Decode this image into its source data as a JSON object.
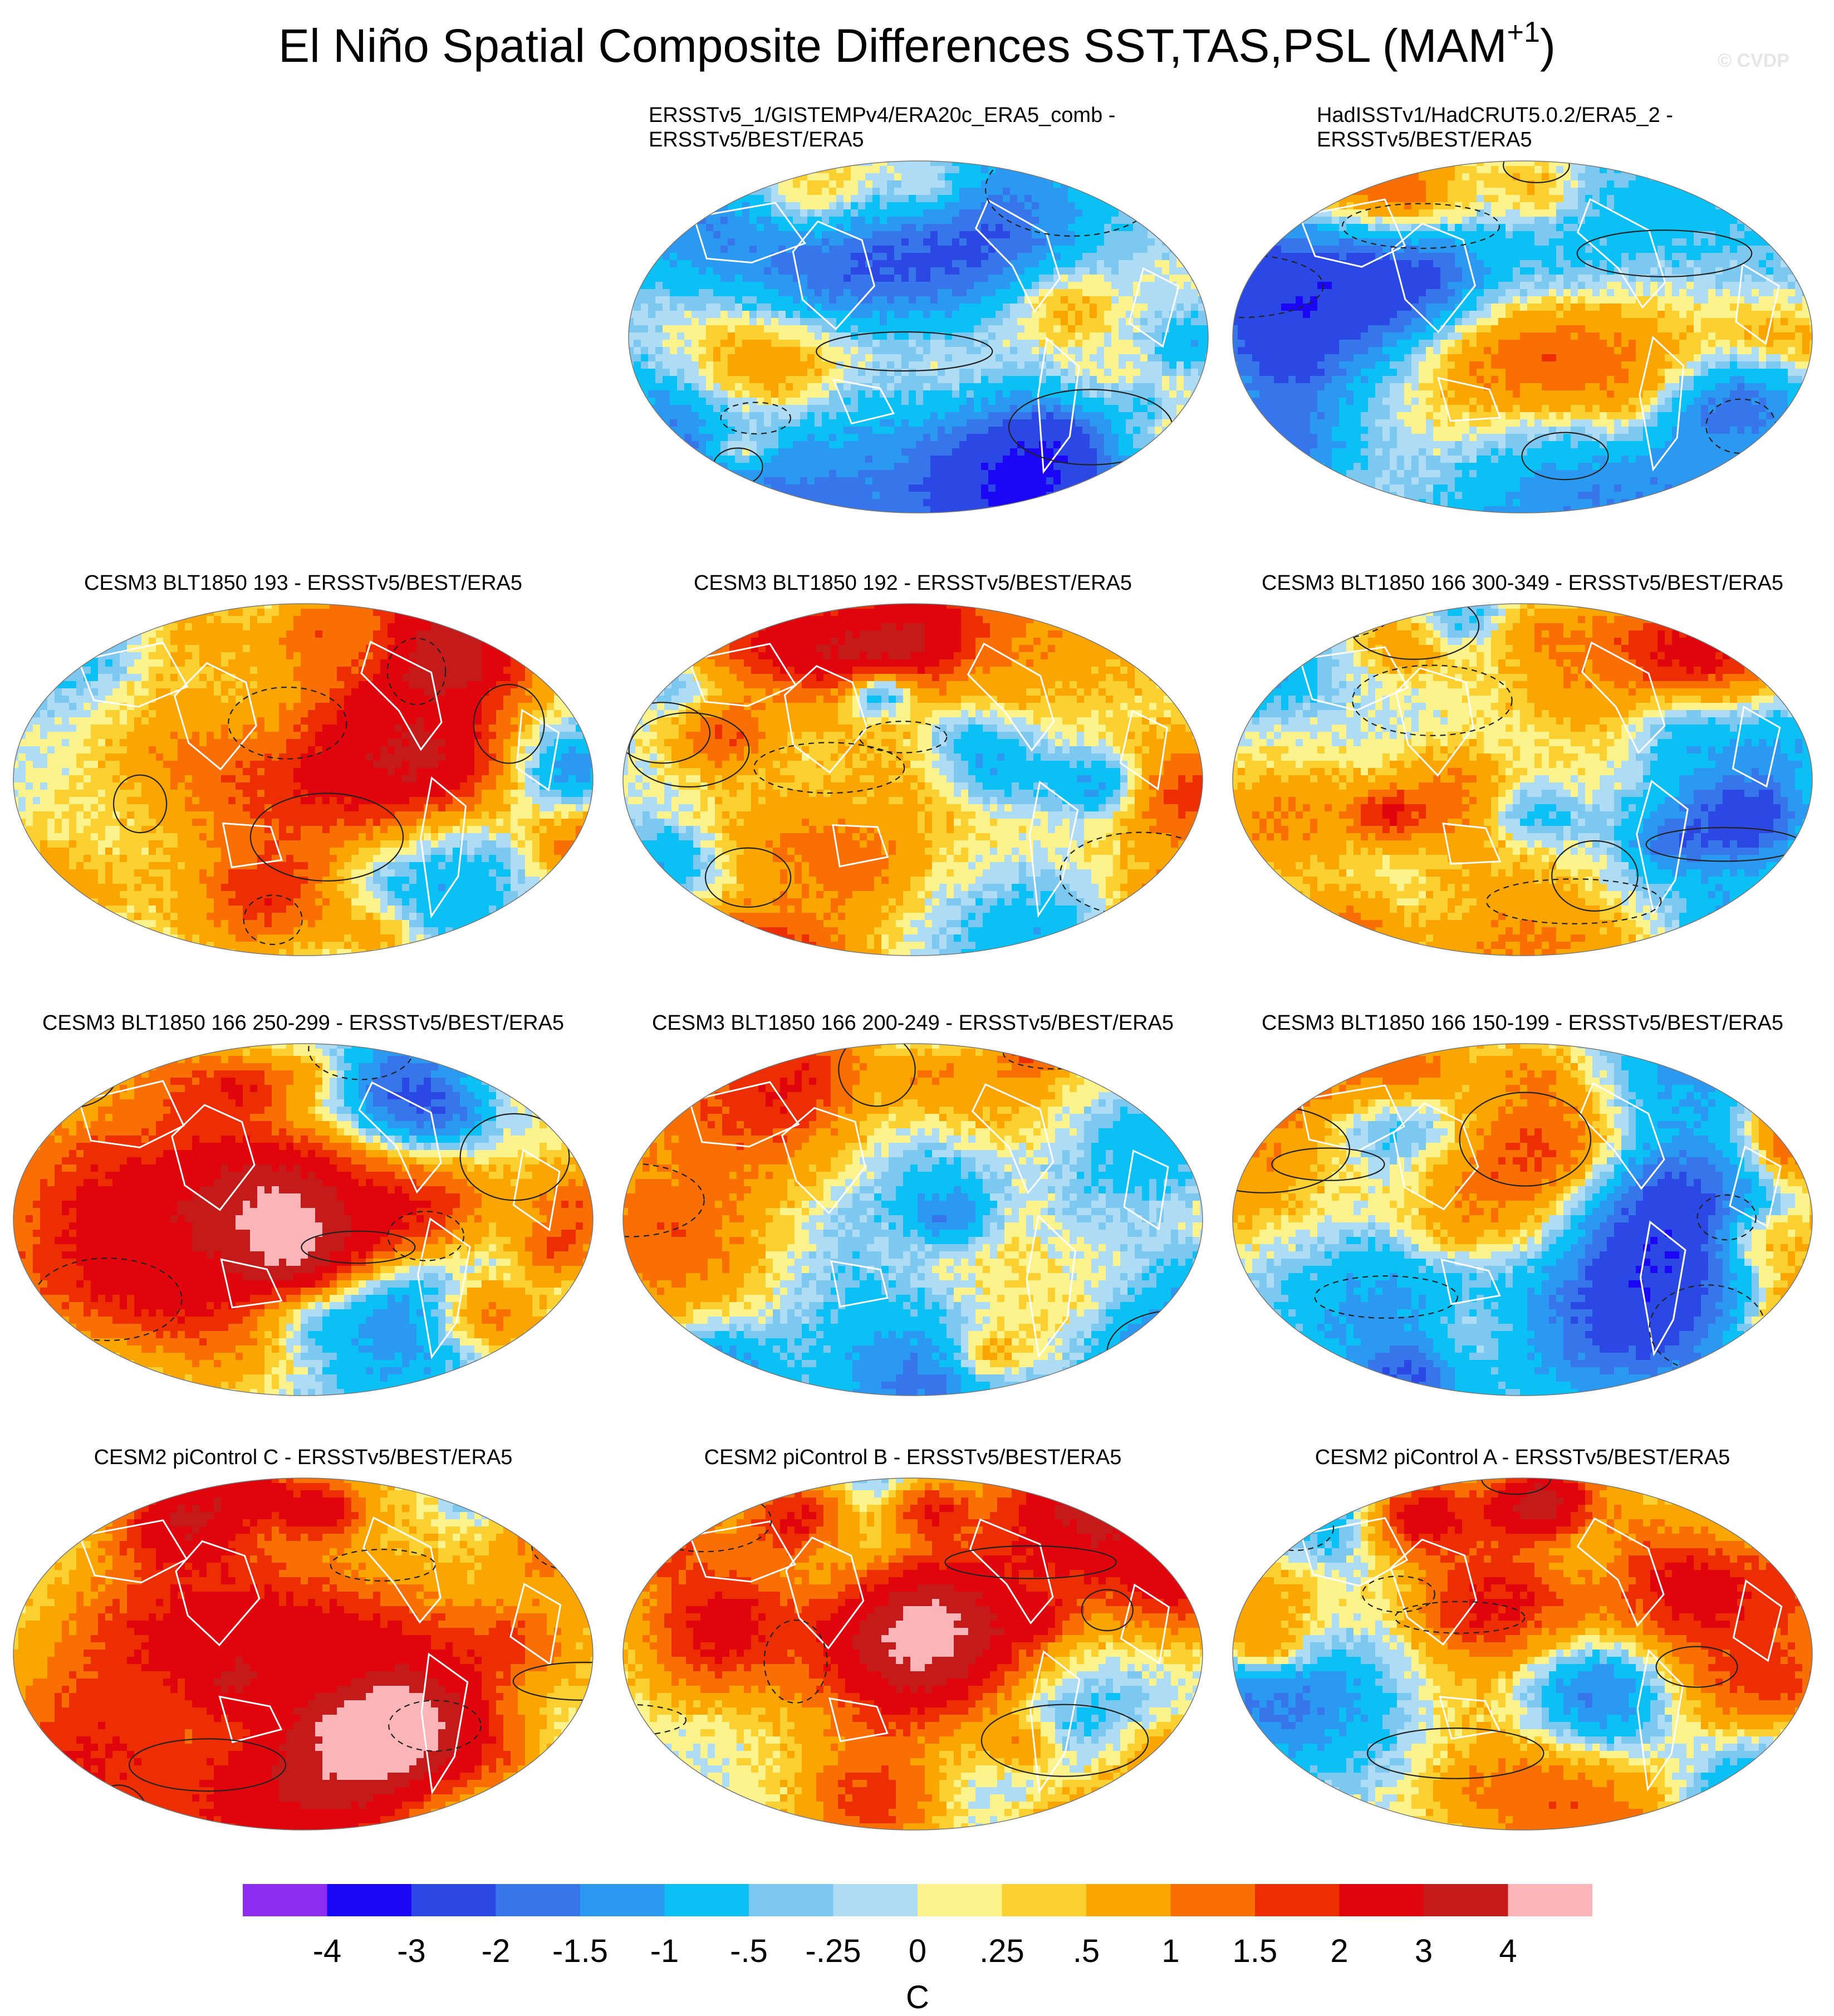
{
  "title": {
    "main": "El Niño Spatial Composite Differences SST,TAS,PSL (MAM",
    "sup": "+1",
    "close": ")"
  },
  "watermark": "© CVDP",
  "panels": [
    {
      "id": "p01",
      "line1": "ERSSTv5_1/GISTEMPv4/ERA20c_ERA5_comb -",
      "line2": "ERSSTv5/BEST/ERA5",
      "seed": 11,
      "warm": 0.35
    },
    {
      "id": "p02",
      "line1": "HadISSTv1/HadCRUT5.0.2/ERA5_2 -",
      "line2": "ERSSTv5/BEST/ERA5",
      "seed": 23,
      "warm": 0.3
    },
    {
      "id": "p03",
      "line1": "CESM3 BLT1850 193 - ERSSTv5/BEST/ERA5",
      "seed": 37,
      "warm": 0.55
    },
    {
      "id": "p04",
      "line1": "CESM3 BLT1850 192 - ERSSTv5/BEST/ERA5",
      "seed": 41,
      "warm": 0.55
    },
    {
      "id": "p05",
      "line1": "CESM3 BLT1850 166 300-349 - ERSSTv5/BEST/ERA5",
      "seed": 53,
      "warm": 0.55
    },
    {
      "id": "p06",
      "line1": "CESM3 BLT1850 166 250-299 - ERSSTv5/BEST/ERA5",
      "seed": 67,
      "warm": 0.55
    },
    {
      "id": "p07",
      "line1": "CESM3 BLT1850 166 200-249 - ERSSTv5/BEST/ERA5",
      "seed": 71,
      "warm": 0.45
    },
    {
      "id": "p08",
      "line1": "CESM3 BLT1850 166 150-199 - ERSSTv5/BEST/ERA5",
      "seed": 83,
      "warm": 0.5
    },
    {
      "id": "p09",
      "line1": "CESM2 piControl C - ERSSTv5/BEST/ERA5",
      "seed": 97,
      "warm": 0.85
    },
    {
      "id": "p10",
      "line1": "CESM2 piControl B - ERSSTv5/BEST/ERA5",
      "seed": 101,
      "warm": 0.85
    },
    {
      "id": "p11",
      "line1": "CESM2 piControl A - ERSSTv5/BEST/ERA5",
      "seed": 113,
      "warm": 0.8
    }
  ],
  "colorbar": {
    "units": "C",
    "labels": [
      "-4",
      "-3",
      "-2",
      "-1.5",
      "-1",
      "-.5",
      "-.25",
      "0",
      ".25",
      ".5",
      "1",
      "1.5",
      "2",
      "3",
      "4"
    ],
    "levels": [
      -4,
      -3,
      -2,
      -1.5,
      -1,
      -0.5,
      -0.25,
      0,
      0.25,
      0.5,
      1,
      1.5,
      2,
      3,
      4
    ],
    "colors": [
      "#8c2cf0",
      "#1b07f5",
      "#2c48e4",
      "#3676ea",
      "#2b98f2",
      "#0bc0f5",
      "#7dc8f0",
      "#aedcf4",
      "#fdf38c",
      "#fbd030",
      "#fba500",
      "#f96f04",
      "#ed2d02",
      "#e0050c",
      "#c41a1a",
      "#fbb4b8"
    ]
  }
}
